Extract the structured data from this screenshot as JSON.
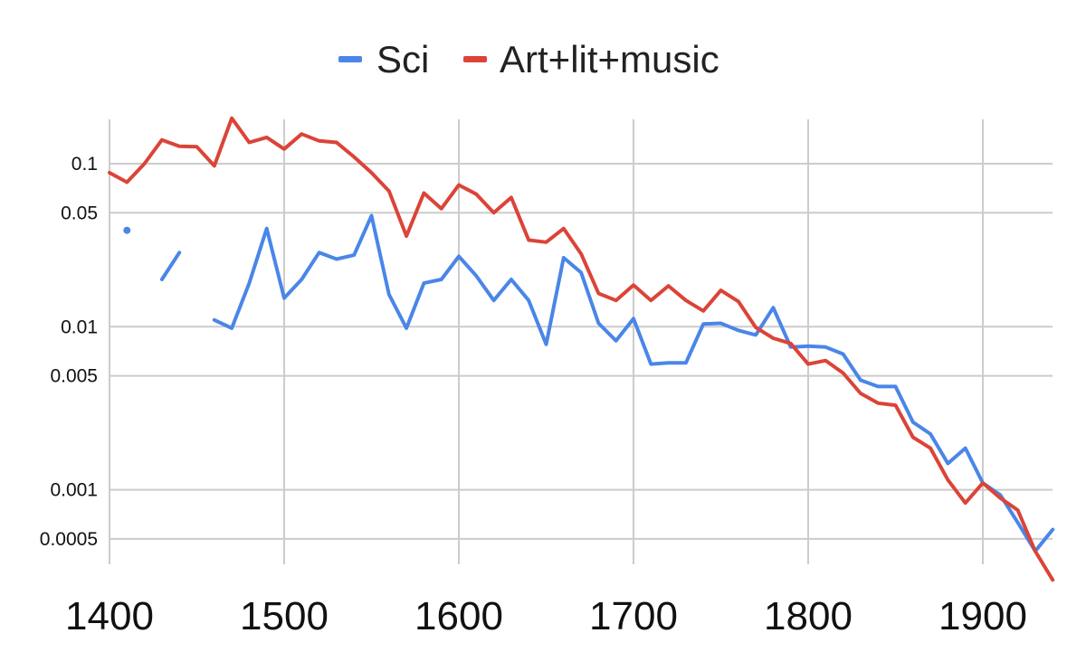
{
  "chart_data": {
    "type": "line",
    "title": "",
    "xlabel": "",
    "ylabel": "",
    "y_scale": "log",
    "ylim": [
      0.0003,
      0.2
    ],
    "xlim": [
      1400,
      1940
    ],
    "grid": true,
    "legend_position": "top",
    "x": [
      1400,
      1410,
      1420,
      1430,
      1440,
      1450,
      1460,
      1470,
      1480,
      1490,
      1500,
      1510,
      1520,
      1530,
      1540,
      1550,
      1560,
      1570,
      1580,
      1590,
      1600,
      1610,
      1620,
      1630,
      1640,
      1650,
      1660,
      1670,
      1680,
      1690,
      1700,
      1710,
      1720,
      1730,
      1740,
      1750,
      1760,
      1770,
      1780,
      1790,
      1800,
      1810,
      1820,
      1830,
      1840,
      1850,
      1860,
      1870,
      1880,
      1890,
      1900,
      1910,
      1920,
      1930,
      1940
    ],
    "x_ticks": [
      "1400",
      "1500",
      "1600",
      "1700",
      "1800",
      "1900"
    ],
    "y_ticks": [
      "0.1",
      "0.05",
      "0.01",
      "0.005",
      "0.001",
      "0.0005"
    ],
    "series": [
      {
        "name": "Sci",
        "color": "#4a86e8",
        "values": [
          null,
          0.039,
          null,
          0.0195,
          0.0285,
          null,
          0.011,
          0.0098,
          0.0185,
          0.04,
          0.015,
          0.0195,
          0.0285,
          0.026,
          0.0275,
          0.048,
          0.0158,
          0.0098,
          0.0185,
          0.0195,
          0.027,
          0.0205,
          0.0145,
          0.0195,
          0.0145,
          0.0078,
          0.0265,
          0.0215,
          0.0105,
          0.0082,
          0.0112,
          0.0059,
          0.006,
          0.006,
          0.0104,
          0.0105,
          0.0095,
          0.0089,
          0.0131,
          0.0075,
          0.0076,
          0.0075,
          0.0068,
          0.0047,
          0.0043,
          0.0043,
          0.0026,
          0.0022,
          0.00145,
          0.0018,
          0.0011,
          0.00093,
          0.00063,
          0.00042,
          0.00057
        ]
      },
      {
        "name": "Art+lit+music",
        "color": "#db4437",
        "values": [
          0.088,
          0.077,
          0.1,
          0.14,
          0.128,
          0.127,
          0.097,
          0.19,
          0.135,
          0.145,
          0.123,
          0.152,
          0.138,
          0.135,
          0.11,
          0.088,
          0.068,
          0.036,
          0.066,
          0.053,
          0.074,
          0.065,
          0.05,
          0.062,
          0.034,
          0.033,
          0.04,
          0.028,
          0.016,
          0.0145,
          0.018,
          0.0145,
          0.0178,
          0.0145,
          0.0125,
          0.0167,
          0.0143,
          0.0099,
          0.0085,
          0.0079,
          0.0059,
          0.0062,
          0.0052,
          0.0039,
          0.0034,
          0.0033,
          0.0021,
          0.0018,
          0.00115,
          0.00083,
          0.0011,
          0.00089,
          0.00075,
          0.00042,
          0.00028
        ]
      }
    ]
  }
}
